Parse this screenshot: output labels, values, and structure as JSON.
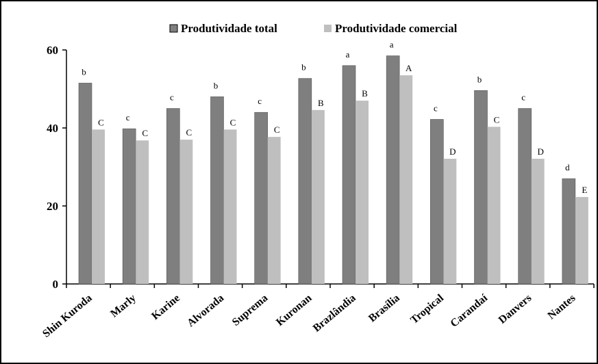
{
  "chart_data": {
    "type": "bar",
    "categories": [
      "Shin Kuroda",
      "Marly",
      "Karine",
      "Alvorada",
      "Suprema",
      "Kuronan",
      "Brazlândia",
      "Brasília",
      "Tropical",
      "Carandaí",
      "Danvers",
      "Nantes"
    ],
    "series": [
      {
        "name": "Produtividade total",
        "color": "#7f7f7f",
        "values": [
          51.5,
          39.8,
          45.0,
          48.0,
          44.0,
          52.7,
          56.0,
          58.5,
          42.2,
          49.6,
          45.0,
          27.0
        ],
        "labels": [
          "b",
          "c",
          "c",
          "b",
          "c",
          "b",
          "a",
          "a",
          "c",
          "b",
          "c",
          "d"
        ]
      },
      {
        "name": "Produtividade comercial",
        "color": "#bfbfbf",
        "values": [
          39.6,
          36.8,
          37.0,
          39.6,
          37.7,
          44.6,
          47.0,
          53.5,
          32.1,
          40.3,
          32.1,
          22.3
        ],
        "labels": [
          "C",
          "C",
          "C",
          "C",
          "C",
          "B",
          "B",
          "A",
          "D",
          "C",
          "D",
          "E"
        ]
      }
    ],
    "ylim": [
      0,
      60
    ],
    "yticks": [
      0,
      20,
      40,
      60
    ],
    "grid": false,
    "legend_position": "top"
  }
}
